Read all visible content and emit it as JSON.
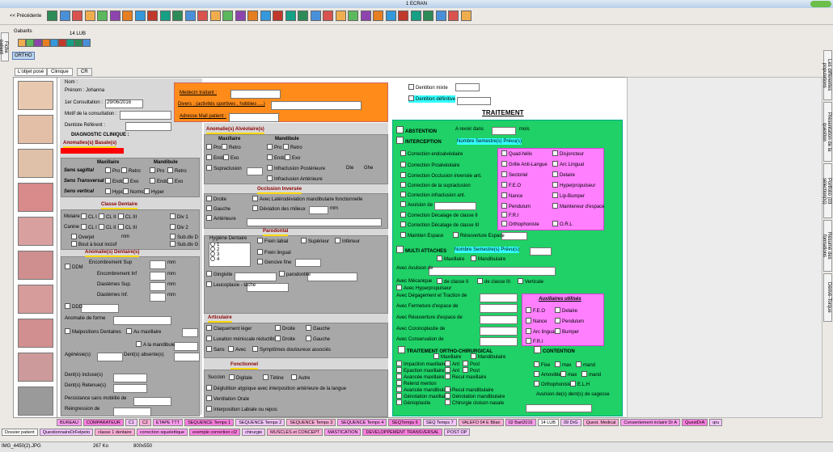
{
  "window_title": "1 ECRAN",
  "nav": {
    "back": "<< Précédente"
  },
  "sidebar": {
    "left": "Fiche patient",
    "right": [
      "Les différentes populations",
      "Présentation de la question",
      "Portfolio (03 sélection(s))",
      "Résumé des formations",
      "Dérivé-Torque"
    ]
  },
  "top": {
    "gabarits": "Gabarits",
    "tab": "14 LUB",
    "ortho": "ORTHO"
  },
  "panel": {
    "title": "L'objet posé",
    "tabs": [
      "Clinique",
      "CR"
    ]
  },
  "patient": {
    "items": [
      "Nom :",
      "Prénom : Johanna",
      "1er Consultation :",
      "Motif de la consultation :",
      "Dentiste Référent :"
    ],
    "date": "29/06/2016"
  },
  "orange": {
    "items": [
      "Medecin traitant :",
      "Divers : (activités sportives , hobbies ....)",
      "Adresse Mail patient :"
    ]
  },
  "diag": {
    "title": "DIAGNOSTIC CLINIQUE :"
  },
  "basal": {
    "title": "Anomalies(s) Basale(s)",
    "items": [
      "Maxillaire",
      "Mandibule",
      "Sens sagittal",
      "Pro",
      "Retro",
      "Pro",
      "Retro",
      "Sens Transversal",
      "Endo",
      "Exo",
      "Endo",
      "Exo",
      "Sens vertical",
      "Hypo",
      "Normo",
      "Hyper"
    ]
  },
  "classe": {
    "title": "Classe Dentaire",
    "items": [
      "Molaire",
      "CL I",
      "CL II",
      "CL III",
      "Div 1",
      "Canine",
      "CL I",
      "CL II",
      "CL III",
      "Div 2",
      "Overjet",
      "mm",
      "Sub.div D",
      "Bout à bout incisif",
      "Sub.div G"
    ]
  },
  "dentaire": {
    "title": "Anomalie(s) Dentaire(s)",
    "items": [
      "DDM",
      "Encombrement Sup",
      "mm",
      "Encombrement Inf",
      "mm",
      "Diastèmes Sup.",
      "mm",
      "Diastèmes Inf.",
      "mm",
      "DDD",
      "Anomalie de forme",
      "Malpositions Dentaires",
      "Au maxillaire",
      "A la mandibule",
      "Agénésie(s)",
      "Dent(s) absente(s)",
      "Dent(s) incluse(s)",
      "Dent(s) Retenue(s)",
      "Persistance sans mobilité de",
      "Réingression de"
    ]
  },
  "alv": {
    "title": "Anomalie(s) Alvéolaire(s)",
    "items": [
      "Maxillaire",
      "Mandibule",
      "Pro",
      "Retro",
      "Pro",
      "Retro",
      "Endo",
      "Exo",
      "Endo",
      "Exo",
      "Supraclusion",
      "Infraclusion Postérieure",
      "Dte",
      "Ghe",
      "Infraclusion Antérieure"
    ]
  },
  "occl": {
    "title": "Occlusion Inversée",
    "items": [
      "Droite",
      "Avec Latérodéviation mandibulaire fonctionnelle",
      "Gauche",
      "Déviation des milieux",
      "mm",
      "Antérieure"
    ]
  },
  "paro": {
    "title": "Parodontal",
    "items": [
      "Hygiène Dentaire",
      "1",
      "2",
      "3",
      "4",
      "Frein labial",
      "Supérieur",
      "Inférieur",
      "Frein lingual",
      "Gencive fine",
      "Gingivite",
      "parodontite",
      "Leucoplasie - tâche"
    ]
  },
  "artic": {
    "title": "Articulaire",
    "items": [
      "Claquement léger",
      "Droite",
      "Gauche",
      "Luxation méniscale réductible",
      "Droite",
      "Gauche",
      "Sans",
      "Avec",
      "Symptômes douloureux associés"
    ]
  },
  "fonct": {
    "title": "Fonctionnel",
    "items": [
      "Succion",
      "Digitale",
      "Tétine",
      "Autre",
      "Déglutition atypique avec interposition antérieure de la langue",
      "Ventilation Orale",
      "Interposition Labiale ou repos"
    ]
  },
  "dentition": {
    "items": [
      "Dentition mixte",
      "Dentition définitive"
    ]
  },
  "treat": {
    "title": "TRAITEMENT",
    "items": [
      "ABSTENTION",
      "A revoir dans",
      "mois",
      "INTERCEPTION",
      "Nombre Semestre(s) Prévu(s)",
      "Correction endoalvéolaire",
      "Correction Proalvéolaire",
      "Correction Occlusion inversée ant.",
      "Correction de la supraclusion",
      "Correction infraclusion ant.",
      "Avulsion de",
      "Correction Décalage de classe II",
      "Correction Décalage de classe III",
      "Maintien Espace",
      "Réouverture Espace",
      "MULTI ATTACHES",
      "Nombre Semestre(s) Prévu(s)",
      "Maxillaire",
      "Mandibulaire",
      "Avec Avulsion de",
      "Avec Mécanique",
      "de classe II",
      "de classe III",
      "Verticale",
      "Avec Hyperpropulseur",
      "Avec Dégagement et Traction de",
      "Avec Fermeture d'espace de",
      "Avec Réouverture d'espace de",
      "Avec Coronoplastie de",
      "Avec Conservation de",
      "TRAITEMENT ORTHO-CHIRURGICAL",
      "CONTENTION",
      "Maxillaire",
      "Mandibulaire",
      "Impaction maxillaire",
      "Ant",
      "Post",
      "Epaction maxillaire",
      "Ant",
      "Post",
      "Avancée maxillaire",
      "Recul maxillaire",
      "Relend menton",
      "Avancée mandibulaire",
      "Recul mandibulaire",
      "Génotation maxillaire",
      "Génotation mandibulaire",
      "Génioplastie",
      "Chirurgie cloison nasale",
      "Fixe",
      "max",
      "mand",
      "Amovible",
      "max",
      "mand",
      "Orthophoniste",
      "E.L.H",
      "Avulsion de(s) dent(s) de sagesse"
    ]
  },
  "pink1": {
    "items": [
      "Quad-hélix",
      "Disjoncteur",
      "Grille Anti-Langue",
      "Arc Lingual",
      "Sectoriel",
      "Delaire",
      "F.E.O",
      "Hyperpropulseur",
      "Nance",
      "Lip-Bumper",
      "Pendulum",
      "Mainteneur d'espace",
      "F.R.I",
      "Orthophoniste",
      "O.R.L"
    ]
  },
  "pink2": {
    "title": "Auxiliaires utilisés",
    "items": [
      "F.E.O",
      "Delaire",
      "Nance",
      "Pendulum",
      "Arc lingual",
      "Bumper",
      "F.R.I"
    ]
  },
  "tabs": {
    "row1": [
      "BUREAU",
      "COMPARATEUR",
      "C1",
      "C2",
      "ETAPE TTT",
      "SEQUENCE Temps 1",
      "SEQUENCE Temps 2",
      "SEQUENCE Temps 3",
      "SEQUENCE Temps 4",
      "SEQTemps 6",
      "SEQ Temps 7",
      "VALEFO 04 E Bilan",
      "02 Bart2016",
      "14 LUB",
      "09 DrG",
      "Quest. Medical",
      "Consentement éclairé Dr A",
      "QuestDrA",
      "qru"
    ],
    "row2": [
      "Dossier patient",
      "QuestionnaireDrFelpeto",
      "classe 1 dentaire",
      "correction squelettique",
      "exemple correction cl2",
      "chirurgie",
      "MUSCLES et CONCEPT",
      "MASTICATION",
      "DEVELOPPEMENT TRANSVERSAL",
      "POST OP"
    ]
  },
  "status": [
    "IMG_4450(2).JPG",
    "267 Ko",
    "800x550"
  ]
}
